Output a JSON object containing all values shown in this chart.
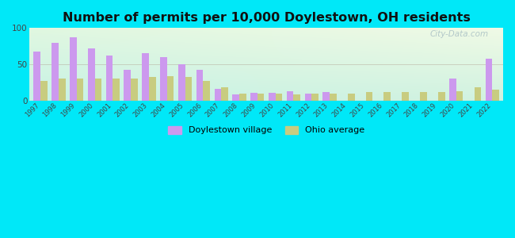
{
  "title": "Number of permits per 10,000 Doylestown, OH residents",
  "years": [
    1997,
    1998,
    1999,
    2000,
    2001,
    2002,
    2003,
    2004,
    2005,
    2006,
    2007,
    2008,
    2009,
    2010,
    2011,
    2012,
    2013,
    2014,
    2015,
    2016,
    2017,
    2018,
    2019,
    2020,
    2021,
    2022
  ],
  "doylestown": [
    67,
    80,
    87,
    72,
    62,
    42,
    65,
    60,
    50,
    42,
    16,
    8,
    10,
    10,
    13,
    9,
    12,
    0,
    0,
    0,
    0,
    0,
    0,
    30,
    0,
    58
  ],
  "ohio_avg": [
    27,
    30,
    30,
    30,
    30,
    30,
    32,
    33,
    32,
    27,
    18,
    9,
    9,
    9,
    8,
    9,
    9,
    9,
    12,
    12,
    12,
    12,
    12,
    13,
    18,
    15
  ],
  "doylestown_color": "#cc99ee",
  "ohio_color": "#c8cc80",
  "bar_width": 0.38,
  "ylim": [
    0,
    100
  ],
  "yticks": [
    0,
    50,
    100
  ],
  "background_outer": "#00e8f8",
  "title_fontsize": 11.5,
  "watermark": "City-Data.com",
  "legend_label1": "Doylestown village",
  "legend_label2": "Ohio average"
}
